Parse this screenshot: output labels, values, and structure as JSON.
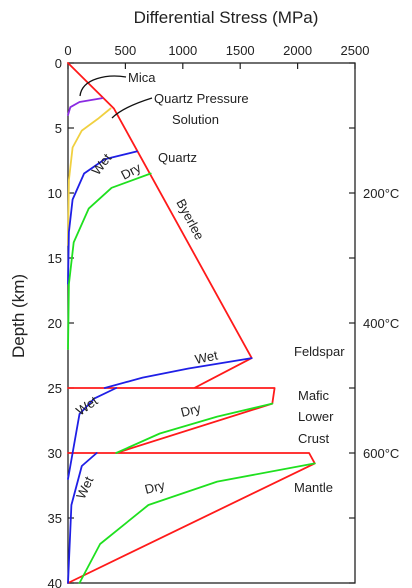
{
  "chart_data": {
    "type": "line",
    "title": "Differential Stress (MPa)",
    "xlabel": "Differential Stress (MPa)",
    "ylabel": "Depth (km)",
    "xlim": [
      0,
      2500
    ],
    "ylim": [
      40,
      0
    ],
    "x_ticks": [
      "0",
      "500",
      "1000",
      "1500",
      "2000",
      "2500"
    ],
    "y_ticks": [
      "0",
      "5",
      "10",
      "15",
      "20",
      "25",
      "30",
      "35",
      "40"
    ],
    "temperature_labels": [
      {
        "depth": 10,
        "text": "200°C"
      },
      {
        "depth": 20,
        "text": "400°C"
      },
      {
        "depth": 30,
        "text": "600°C"
      }
    ],
    "colors": {
      "frictional": "#ff1a1a",
      "wet": "#1f1fe6",
      "dry": "#1fe01f",
      "mica": "#8a2be2",
      "quartz_pressure_solution": "#f0d040",
      "axis": "#222222"
    },
    "series": [
      {
        "color": "red",
        "points": [
          [
            0,
            0
          ],
          [
            400,
            3.5
          ],
          [
            1600,
            22.7
          ],
          [
            1100,
            25
          ],
          [
            0,
            25
          ],
          [
            1800,
            25
          ],
          [
            1780,
            26.2
          ],
          [
            420,
            30
          ],
          [
            0,
            30
          ],
          [
            2100,
            30
          ],
          [
            2150,
            30.8
          ],
          [
            0,
            40
          ]
        ]
      },
      {
        "color": "purple",
        "points": [
          [
            0,
            4
          ],
          [
            20,
            3.4
          ],
          [
            100,
            3.0
          ],
          [
            300,
            2.7
          ]
        ]
      },
      {
        "color": "yellow",
        "points": [
          [
            0,
            14
          ],
          [
            8,
            9
          ],
          [
            40,
            6.5
          ],
          [
            120,
            5.2
          ],
          [
            260,
            4.3
          ],
          [
            370,
            3.5
          ]
        ]
      },
      {
        "color": "blue",
        "points": [
          [
            0,
            17
          ],
          [
            8,
            13
          ],
          [
            40,
            10.5
          ],
          [
            140,
            8.5
          ],
          [
            320,
            7.4
          ],
          [
            600,
            6.8
          ]
        ]
      },
      {
        "color": "green",
        "points": [
          [
            0,
            22
          ],
          [
            8,
            17
          ],
          [
            50,
            13.8
          ],
          [
            180,
            11.2
          ],
          [
            380,
            9.6
          ],
          [
            720,
            8.5
          ]
        ]
      },
      {
        "color": "blue",
        "points": [
          [
            320,
            25
          ],
          [
            650,
            24.2
          ],
          [
            1050,
            23.5
          ],
          [
            1600,
            22.7
          ]
        ]
      },
      {
        "color": "blue",
        "points": [
          [
            0,
            32
          ],
          [
            100,
            27
          ],
          [
            230,
            25.8
          ],
          [
            420,
            25.0
          ]
        ]
      },
      {
        "color": "green",
        "points": [
          [
            420,
            30
          ],
          [
            800,
            28.5
          ],
          [
            1300,
            27.2
          ],
          [
            1780,
            26.2
          ]
        ]
      },
      {
        "color": "blue",
        "points": [
          [
            0,
            40
          ],
          [
            30,
            34
          ],
          [
            120,
            31
          ],
          [
            250,
            30.0
          ]
        ]
      },
      {
        "color": "green",
        "points": [
          [
            100,
            40
          ],
          [
            280,
            37
          ],
          [
            700,
            34
          ],
          [
            1300,
            32.2
          ],
          [
            2150,
            30.8
          ]
        ]
      }
    ],
    "annotations": [
      {
        "text": "Mica"
      },
      {
        "text": "Quartz Pressure"
      },
      {
        "text": "Solution"
      },
      {
        "text": "Quartz"
      },
      {
        "text": "Wet"
      },
      {
        "text": "Dry"
      },
      {
        "text": "Byerlee"
      },
      {
        "text": "Feldspar"
      },
      {
        "text": "Wet"
      },
      {
        "text": "Mafic"
      },
      {
        "text": "Lower"
      },
      {
        "text": "Crust"
      },
      {
        "text": "Wet"
      },
      {
        "text": "Dry"
      },
      {
        "text": "Mantle"
      },
      {
        "text": "Wet"
      },
      {
        "text": "Dry"
      }
    ]
  }
}
